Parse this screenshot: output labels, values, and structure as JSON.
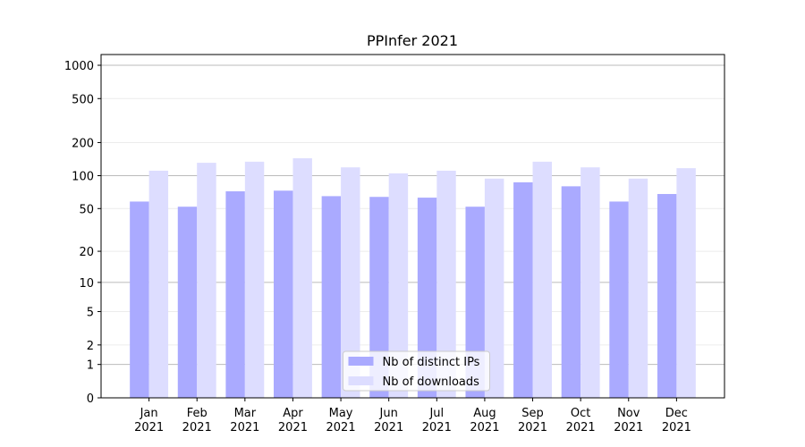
{
  "chart_data": {
    "type": "bar",
    "title": "PPInfer 2021",
    "categories": [
      "Jan\n2021",
      "Feb\n2021",
      "Mar\n2021",
      "Apr\n2021",
      "May\n2021",
      "Jun\n2021",
      "Jul\n2021",
      "Aug\n2021",
      "Sep\n2021",
      "Oct\n2021",
      "Nov\n2021",
      "Dec\n2021"
    ],
    "series": [
      {
        "name": "Nb of distinct IPs",
        "color": "#aaaaff",
        "values": [
          58,
          52,
          72,
          73,
          65,
          64,
          63,
          52,
          87,
          80,
          58,
          68
        ]
      },
      {
        "name": "Nb of downloads",
        "color": "#ddddff",
        "values": [
          111,
          131,
          134,
          144,
          119,
          105,
          111,
          94,
          134,
          119,
          94,
          117
        ]
      }
    ],
    "yscale": "log1p",
    "ylim": [
      0,
      1250
    ],
    "yticks": [
      0,
      1,
      2,
      5,
      10,
      20,
      50,
      100,
      200,
      500,
      1000
    ],
    "grid": true,
    "legend": "lower center"
  }
}
